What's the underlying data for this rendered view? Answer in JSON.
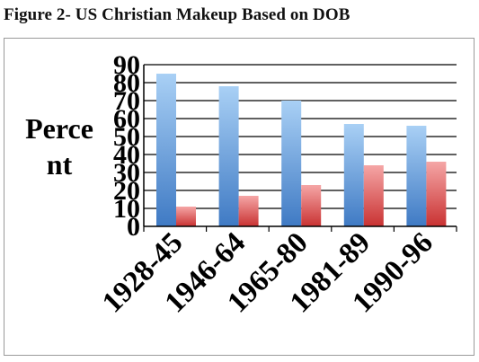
{
  "figure": {
    "title": "Figure 2- US Christian Makeup Based on DOB"
  },
  "chart_data": {
    "type": "bar",
    "title": "",
    "xlabel": "",
    "ylabel_lines": [
      "Perce",
      "nt"
    ],
    "categories": [
      "1928-45",
      "1946-64",
      "1965-80",
      "1981-89",
      "1990-96"
    ],
    "series": [
      {
        "values": [
          85,
          78,
          70,
          57,
          56
        ],
        "color": "#5b9bd5"
      },
      {
        "values": [
          11,
          17,
          23,
          34,
          36
        ],
        "color": "#e05555"
      }
    ],
    "ylim": [
      0,
      90
    ],
    "yticks": [
      "0",
      "10",
      "20",
      "30",
      "40",
      "50",
      "60",
      "70",
      "80",
      "90"
    ],
    "grid": true,
    "legend": "none"
  }
}
